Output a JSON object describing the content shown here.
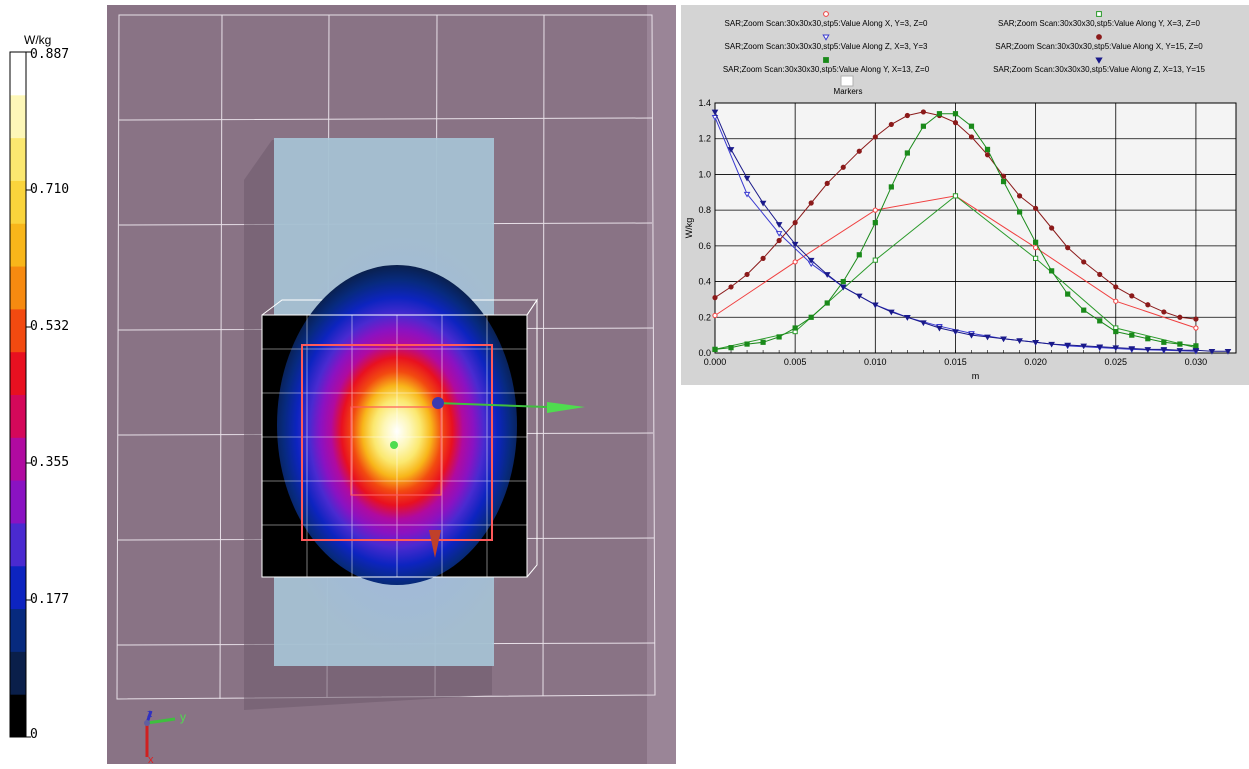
{
  "colorbar": {
    "unit": "W/kg",
    "tick_labels": [
      "0.887",
      "0.710",
      "0.532",
      "0.355",
      "0.177",
      "0"
    ],
    "colors": [
      "#000000",
      "#0a1f4a",
      "#072a7e",
      "#0d24c0",
      "#4a2ad0",
      "#8a12c2",
      "#b00aa0",
      "#d4085a",
      "#e81020",
      "#f24a10",
      "#f68a10",
      "#f8b61a",
      "#fad43c",
      "#fbe870",
      "#fdf7b8",
      "#ffffff"
    ]
  },
  "viewport": {
    "axis_labels": {
      "y": "y",
      "z": "z",
      "x": "x"
    },
    "background_color": "#897385"
  },
  "legend": {
    "entries": [
      {
        "label": "SAR;Zoom Scan:30x30x30,stp5:Value Along X, Y=3, Z=0",
        "color": "#f04040",
        "marker": "open-circle"
      },
      {
        "label": "SAR;Zoom Scan:30x30x30,stp5:Value Along Y, X=3, Z=0",
        "color": "#2a9a2a",
        "marker": "open-square"
      },
      {
        "label": "SAR;Zoom Scan:30x30x30,stp5:Value Along Z, X=3, Y=3",
        "color": "#3a3ad0",
        "marker": "open-triangle-down"
      },
      {
        "label": "SAR;Zoom Scan:30x30x30,stp5:Value Along X, Y=15, Z=0",
        "color": "#8b1a1a",
        "marker": "filled-circle"
      },
      {
        "label": "SAR;Zoom Scan:30x30x30,stp5:Value Along Y, X=13, Z=0",
        "color": "#1a8a1a",
        "marker": "filled-square"
      },
      {
        "label": "SAR;Zoom Scan:30x30x30,stp5:Value Along Z, X=13, Y=15",
        "color": "#1a1a8a",
        "marker": "filled-triangle-down"
      }
    ],
    "markers_label": "Markers"
  },
  "chart_data": {
    "type": "line",
    "xlabel": "m",
    "ylabel": "W/kg",
    "xlim": [
      0,
      0.0325
    ],
    "ylim": [
      0,
      1.4
    ],
    "xticks": [
      "0.000",
      "0.005",
      "0.010",
      "0.015",
      "0.020",
      "0.025",
      "0.030"
    ],
    "yticks": [
      "0.0",
      "0.2",
      "0.4",
      "0.6",
      "0.8",
      "1.0",
      "1.2",
      "1.4"
    ],
    "grid": true,
    "series": [
      {
        "name": "SAR;Zoom Scan:30x30x30,stp5:Value Along X, Y=3, Z=0",
        "marker": "open-circle",
        "color": "#f04040",
        "x": [
          0,
          0.005,
          0.01,
          0.015,
          0.02,
          0.025,
          0.03
        ],
        "y": [
          0.21,
          0.51,
          0.8,
          0.88,
          0.59,
          0.29,
          0.14
        ]
      },
      {
        "name": "SAR;Zoom Scan:30x30x30,stp5:Value Along Y, X=3, Z=0",
        "marker": "open-square",
        "color": "#2a9a2a",
        "x": [
          0,
          0.005,
          0.01,
          0.015,
          0.02,
          0.025,
          0.03
        ],
        "y": [
          0.02,
          0.12,
          0.52,
          0.88,
          0.53,
          0.14,
          0.03
        ]
      },
      {
        "name": "SAR;Zoom Scan:30x30x30,stp5:Value Along Z, X=3, Y=3",
        "marker": "open-triangle-down",
        "color": "#3a3ad0",
        "x": [
          0,
          0.002,
          0.004,
          0.006,
          0.008,
          0.01,
          0.012,
          0.014,
          0.016,
          0.018,
          0.02,
          0.022,
          0.024,
          0.026,
          0.028,
          0.03
        ],
        "y": [
          1.32,
          0.89,
          0.67,
          0.5,
          0.37,
          0.27,
          0.2,
          0.15,
          0.11,
          0.08,
          0.06,
          0.04,
          0.03,
          0.02,
          0.015,
          0.01
        ]
      },
      {
        "name": "SAR;Zoom Scan:30x30x30,stp5:Value Along X, Y=15, Z=0",
        "marker": "filled-circle",
        "color": "#8b1a1a",
        "x": [
          0,
          0.001,
          0.002,
          0.003,
          0.004,
          0.005,
          0.006,
          0.007,
          0.008,
          0.009,
          0.01,
          0.011,
          0.012,
          0.013,
          0.014,
          0.015,
          0.016,
          0.017,
          0.018,
          0.019,
          0.02,
          0.021,
          0.022,
          0.023,
          0.024,
          0.025,
          0.026,
          0.027,
          0.028,
          0.029,
          0.03
        ],
        "y": [
          0.31,
          0.37,
          0.44,
          0.53,
          0.63,
          0.73,
          0.84,
          0.95,
          1.04,
          1.13,
          1.21,
          1.28,
          1.33,
          1.35,
          1.33,
          1.29,
          1.21,
          1.11,
          0.99,
          0.88,
          0.81,
          0.7,
          0.59,
          0.51,
          0.44,
          0.37,
          0.32,
          0.27,
          0.23,
          0.2,
          0.19
        ]
      },
      {
        "name": "SAR;Zoom Scan:30x30x30,stp5:Value Along Y, X=13, Z=0",
        "marker": "filled-square",
        "color": "#1a8a1a",
        "x": [
          0,
          0.001,
          0.002,
          0.003,
          0.004,
          0.005,
          0.006,
          0.007,
          0.008,
          0.009,
          0.01,
          0.011,
          0.012,
          0.013,
          0.014,
          0.015,
          0.016,
          0.017,
          0.018,
          0.019,
          0.02,
          0.021,
          0.022,
          0.023,
          0.024,
          0.025,
          0.026,
          0.027,
          0.028,
          0.029,
          0.03
        ],
        "y": [
          0.02,
          0.03,
          0.05,
          0.06,
          0.09,
          0.14,
          0.2,
          0.28,
          0.4,
          0.55,
          0.73,
          0.93,
          1.12,
          1.27,
          1.34,
          1.34,
          1.27,
          1.14,
          0.96,
          0.79,
          0.62,
          0.46,
          0.33,
          0.24,
          0.18,
          0.12,
          0.1,
          0.08,
          0.06,
          0.05,
          0.04
        ]
      },
      {
        "name": "SAR;Zoom Scan:30x30x30,stp5:Value Along Z, X=13, Y=15",
        "marker": "filled-triangle-down",
        "color": "#1a1a8a",
        "x": [
          0,
          0.001,
          0.002,
          0.003,
          0.004,
          0.005,
          0.006,
          0.007,
          0.008,
          0.009,
          0.01,
          0.011,
          0.012,
          0.013,
          0.014,
          0.015,
          0.016,
          0.017,
          0.018,
          0.019,
          0.02,
          0.021,
          0.022,
          0.023,
          0.024,
          0.025,
          0.026,
          0.027,
          0.028,
          0.029,
          0.03,
          0.031,
          0.032
        ],
        "y": [
          1.35,
          1.14,
          0.98,
          0.84,
          0.72,
          0.61,
          0.52,
          0.44,
          0.37,
          0.32,
          0.27,
          0.23,
          0.2,
          0.17,
          0.14,
          0.12,
          0.1,
          0.09,
          0.08,
          0.07,
          0.06,
          0.05,
          0.045,
          0.04,
          0.035,
          0.03,
          0.025,
          0.02,
          0.02,
          0.015,
          0.015,
          0.01,
          0.01
        ]
      }
    ]
  }
}
